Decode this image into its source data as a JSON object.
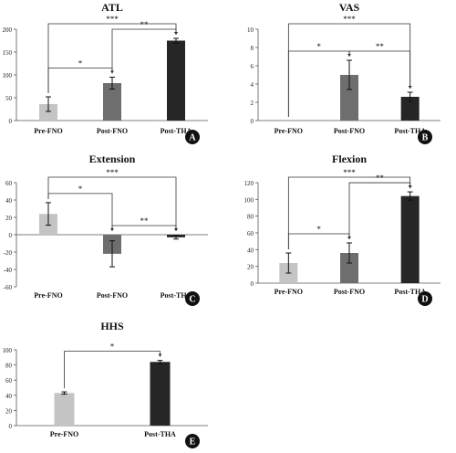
{
  "chart_data": [
    {
      "type": "bar",
      "panel": "A",
      "title": "ATL",
      "categories": [
        "Pre-FNO",
        "Post-FNO",
        "Post-THA"
      ],
      "values": [
        36,
        82,
        175
      ],
      "errors": [
        16,
        13,
        5
      ],
      "colors": [
        "#c4c4c4",
        "#6e6e6e",
        "#262626"
      ],
      "ylim": [
        0,
        200
      ],
      "yticks": [
        0,
        50,
        100,
        150,
        200
      ],
      "significance": [
        {
          "from": 0,
          "to": 1,
          "label": "*"
        },
        {
          "from": 1,
          "to": 2,
          "label": "**"
        },
        {
          "from": 0,
          "to": 2,
          "label": "***"
        }
      ]
    },
    {
      "type": "bar",
      "panel": "B",
      "title": "VAS",
      "categories": [
        "Pre-FNO",
        "Post-FNO",
        "Post-THA"
      ],
      "values": [
        0,
        5.0,
        2.6
      ],
      "errors": [
        0,
        1.6,
        0.5
      ],
      "colors": [
        "#c4c4c4",
        "#6e6e6e",
        "#262626"
      ],
      "ylim": [
        0,
        10
      ],
      "yticks": [
        0,
        2,
        4,
        6,
        8,
        10
      ],
      "significance": [
        {
          "from": 0,
          "to": 1,
          "label": "*"
        },
        {
          "from": 1,
          "to": 2,
          "label": "**"
        },
        {
          "from": 0,
          "to": 2,
          "label": "***"
        }
      ]
    },
    {
      "type": "bar",
      "panel": "C",
      "title": "Extension",
      "categories": [
        "Pre-FNO",
        "Post-FNO",
        "Post-THA"
      ],
      "values": [
        24,
        -22,
        -3
      ],
      "errors": [
        13,
        15,
        2
      ],
      "colors": [
        "#c4c4c4",
        "#6e6e6e",
        "#262626"
      ],
      "ylim": [
        -60,
        60
      ],
      "yticks": [
        -60,
        -40,
        -20,
        0,
        20,
        40,
        60
      ],
      "significance": [
        {
          "from": 0,
          "to": 1,
          "label": "*"
        },
        {
          "from": 1,
          "to": 2,
          "label": "**"
        },
        {
          "from": 0,
          "to": 2,
          "label": "***"
        }
      ]
    },
    {
      "type": "bar",
      "panel": "D",
      "title": "Flexion",
      "categories": [
        "Pre-FNO",
        "Post-FNO",
        "Post-THA"
      ],
      "values": [
        24,
        36,
        104
      ],
      "errors": [
        12,
        12,
        5
      ],
      "colors": [
        "#c4c4c4",
        "#6e6e6e",
        "#262626"
      ],
      "ylim": [
        0,
        120
      ],
      "yticks": [
        0,
        20,
        40,
        60,
        80,
        100,
        120
      ],
      "significance": [
        {
          "from": 0,
          "to": 1,
          "label": "*"
        },
        {
          "from": 1,
          "to": 2,
          "label": "**"
        },
        {
          "from": 0,
          "to": 2,
          "label": "***"
        }
      ]
    },
    {
      "type": "bar",
      "panel": "E",
      "title": "HHS",
      "categories": [
        "Pre-FNO",
        "Post-THA"
      ],
      "values": [
        43,
        84
      ],
      "errors": [
        1.5,
        2
      ],
      "colors": [
        "#c4c4c4",
        "#262626"
      ],
      "ylim": [
        0,
        100
      ],
      "yticks": [
        0,
        20,
        40,
        60,
        80,
        100
      ],
      "significance": [
        {
          "from": 0,
          "to": 1,
          "label": "*"
        }
      ]
    }
  ]
}
